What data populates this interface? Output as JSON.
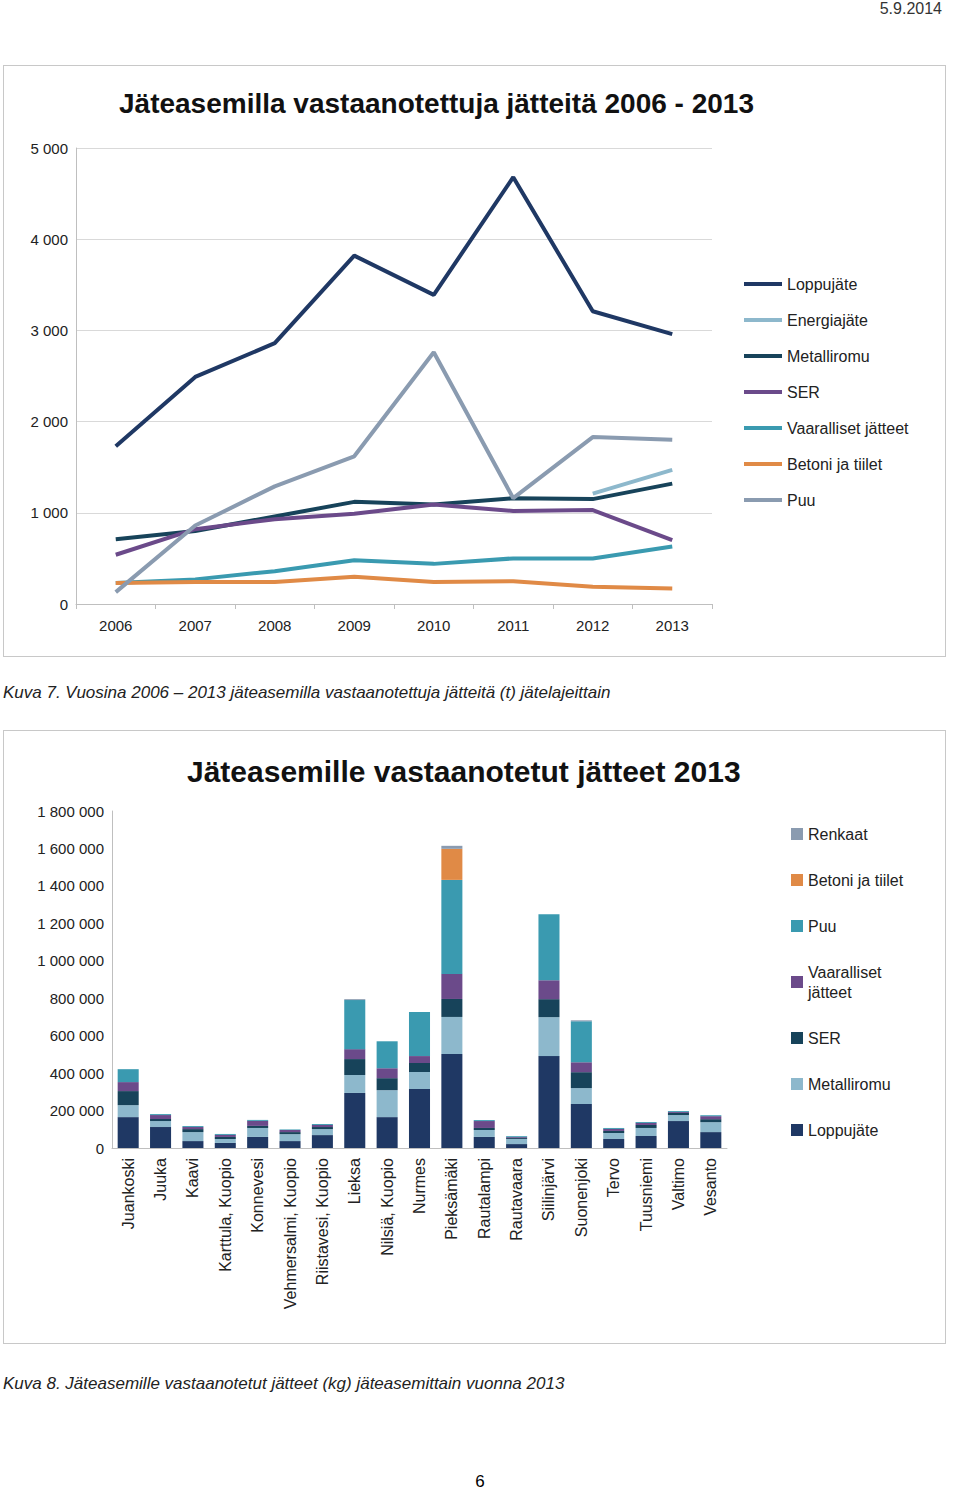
{
  "header": {
    "date": "5.9.2014"
  },
  "chart_data": [
    {
      "type": "line",
      "title": "Jäteasemilla vastaanotettuja jätteitä 2006 - 2013",
      "caption": "Kuva 7. Vuosina 2006 – 2013 jäteasemilla vastaanotettuja jätteitä (t) jätelajeittain",
      "categories": [
        "2006",
        "2007",
        "2008",
        "2009",
        "2010",
        "2011",
        "2012",
        "2013"
      ],
      "series": [
        {
          "name": "Loppujäte",
          "color": "#1f3864",
          "values": [
            1730,
            2490,
            2860,
            3820,
            3390,
            4680,
            3210,
            2960
          ]
        },
        {
          "name": "Energiajäte",
          "color": "#8db8cc",
          "values": [
            null,
            null,
            null,
            null,
            null,
            null,
            1210,
            1470
          ]
        },
        {
          "name": "Metalliromu",
          "color": "#17435a",
          "values": [
            710,
            800,
            960,
            1120,
            1090,
            1160,
            1150,
            1320
          ]
        },
        {
          "name": "SER",
          "color": "#6b4a8a",
          "values": [
            540,
            820,
            930,
            990,
            1090,
            1020,
            1030,
            700
          ]
        },
        {
          "name": "Vaaralliset jätteet",
          "color": "#3a9ab0",
          "values": [
            230,
            270,
            360,
            480,
            440,
            500,
            500,
            630
          ]
        },
        {
          "name": "Betoni ja tiilet",
          "color": "#e08a46",
          "values": [
            230,
            240,
            240,
            300,
            240,
            250,
            190,
            170
          ]
        },
        {
          "name": "Puu",
          "color": "#8a9bb0",
          "values": [
            130,
            860,
            1290,
            1620,
            2760,
            1160,
            1830,
            1800
          ]
        }
      ],
      "ylim": [
        0,
        5000
      ],
      "yticks": [
        0,
        {
          "value": 1000,
          "label": "1 000"
        },
        {
          "value": 2000,
          "label": "2 000"
        },
        {
          "value": 3000,
          "label": "3 000"
        },
        {
          "value": 4000,
          "label": "4 000"
        },
        {
          "value": 5000,
          "label": "5 000"
        }
      ],
      "grid": true,
      "legend": "right"
    },
    {
      "type": "bar",
      "title": "Jäteasemille vastaanotetut jätteet 2013",
      "caption": "Kuva 8. Jäteasemille vastaanotetut jätteet (kg) jäteasemittain vuonna 2013",
      "categories": [
        "Juankoski",
        "Juuka",
        "Kaavi",
        "Karttula, Kuopio",
        "Konnevesi",
        "Vehmersalmi, Kuopio",
        "Riistavesi, Kuopio",
        "Lieksa",
        "Nilsiä, Kuopio",
        "Nurmes",
        "Pieksämäki",
        "Rautalampi",
        "Rautavaara",
        "Siilinjärvi",
        "Suonenjoki",
        "Tervo",
        "Tuusniemi",
        "Valtimo",
        "Vesanto"
      ],
      "series": [
        {
          "name": "Loppujäte",
          "color": "#1f3864",
          "values": [
            165000,
            112000,
            37000,
            27000,
            59000,
            37000,
            69000,
            294000,
            165000,
            315000,
            502000,
            59000,
            21000,
            491000,
            235000,
            48000,
            64000,
            144000,
            85000
          ]
        },
        {
          "name": "Metalliromu",
          "color": "#8db8cc",
          "values": [
            64000,
            32000,
            48000,
            21000,
            48000,
            37000,
            32000,
            96000,
            144000,
            91000,
            198000,
            37000,
            27000,
            208000,
            85000,
            32000,
            43000,
            32000,
            53000
          ]
        },
        {
          "name": "SER",
          "color": "#17435a",
          "values": [
            75000,
            11000,
            16000,
            11000,
            11000,
            11000,
            11000,
            85000,
            64000,
            48000,
            96000,
            11000,
            5000,
            96000,
            85000,
            11000,
            16000,
            11000,
            16000
          ]
        },
        {
          "name": "Vaaralliset jätteet",
          "color": "#6b4a8a",
          "values": [
            48000,
            21000,
            11000,
            11000,
            27000,
            11000,
            11000,
            53000,
            53000,
            37000,
            134000,
            37000,
            5000,
            101000,
            53000,
            11000,
            11000,
            5000,
            16000
          ]
        },
        {
          "name": "Puu",
          "color": "#3a9ab0",
          "values": [
            69000,
            5000,
            5000,
            5000,
            5000,
            3000,
            5000,
            262000,
            144000,
            235000,
            502000,
            5000,
            5000,
            352000,
            219000,
            5000,
            5000,
            5000,
            5000
          ]
        },
        {
          "name": "Betoni ja tiilet",
          "color": "#e08a46",
          "values": [
            0,
            0,
            0,
            0,
            0,
            0,
            0,
            0,
            0,
            0,
            166000,
            0,
            0,
            0,
            0,
            0,
            0,
            0,
            0
          ]
        },
        {
          "name": "Renkaat",
          "color": "#8a9bb0",
          "values": [
            0,
            0,
            0,
            0,
            0,
            0,
            0,
            5000,
            0,
            0,
            16000,
            0,
            0,
            0,
            5000,
            0,
            0,
            0,
            0
          ]
        }
      ],
      "ylim": [
        0,
        1800000
      ],
      "yticks": [
        0,
        {
          "value": 200000,
          "label": "200 000"
        },
        {
          "value": 400000,
          "label": "400 000"
        },
        {
          "value": 600000,
          "label": "600 000"
        },
        {
          "value": 800000,
          "label": "800 000"
        },
        {
          "value": 1000000,
          "label": "1 000 000"
        },
        {
          "value": 1200000,
          "label": "1 200 000"
        },
        {
          "value": 1400000,
          "label": "1 400 000"
        },
        {
          "value": 1600000,
          "label": "1 600 000"
        },
        {
          "value": 1800000,
          "label": "1 800 000"
        }
      ],
      "stacked": true,
      "grid": false,
      "legend": "right"
    }
  ],
  "footer": {
    "page": "6"
  }
}
